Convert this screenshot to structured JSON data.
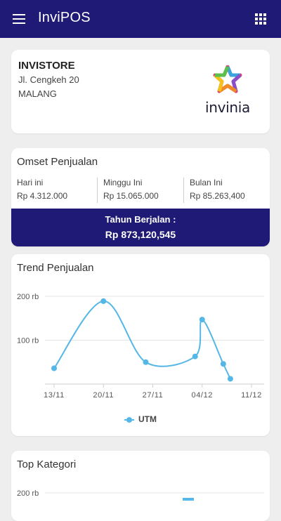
{
  "app": {
    "title": "InviPOS",
    "menu_icon": "hamburger-menu-icon",
    "apps_icon": "grid-apps-icon",
    "colors": {
      "primary": "#1e1a75",
      "chart_line": "#55b7e6",
      "background": "#eeeeee"
    }
  },
  "store": {
    "name": "INVISTORE",
    "address": "Jl. Cengkeh 20",
    "city": "MALANG",
    "logo_text": "invinia"
  },
  "omset": {
    "title": "Omset Penjualan",
    "stats": [
      {
        "label": "Hari ini",
        "value": "Rp 4.312.000"
      },
      {
        "label": "Minggu Ini",
        "value": "Rp 15.065.000"
      },
      {
        "label": "Bulan Ini",
        "value": "Rp 85.263,400"
      }
    ],
    "ytd_label": "Tahun Berjalan :",
    "ytd_value": "Rp 873,120,545"
  },
  "trend": {
    "title": "Trend Penjualan"
  },
  "kategori": {
    "title": "Top Kategori",
    "ytick_top": "200 rb"
  },
  "chart_data": {
    "type": "line",
    "title": "Trend Penjualan",
    "x_ticks": [
      "13/11",
      "20/11",
      "27/11",
      "04/12",
      "11/12"
    ],
    "y_ticks": [
      "100 rb",
      "200 rb"
    ],
    "ylim": [
      0,
      200
    ],
    "grid": true,
    "legend_position": "bottom",
    "series": [
      {
        "name": "UTM",
        "x": [
          "13/11",
          "20/11",
          "26/11",
          "03/12",
          "04/12",
          "07/12",
          "08/12"
        ],
        "values": [
          36,
          189,
          50,
          63,
          147,
          46,
          12
        ]
      }
    ]
  }
}
